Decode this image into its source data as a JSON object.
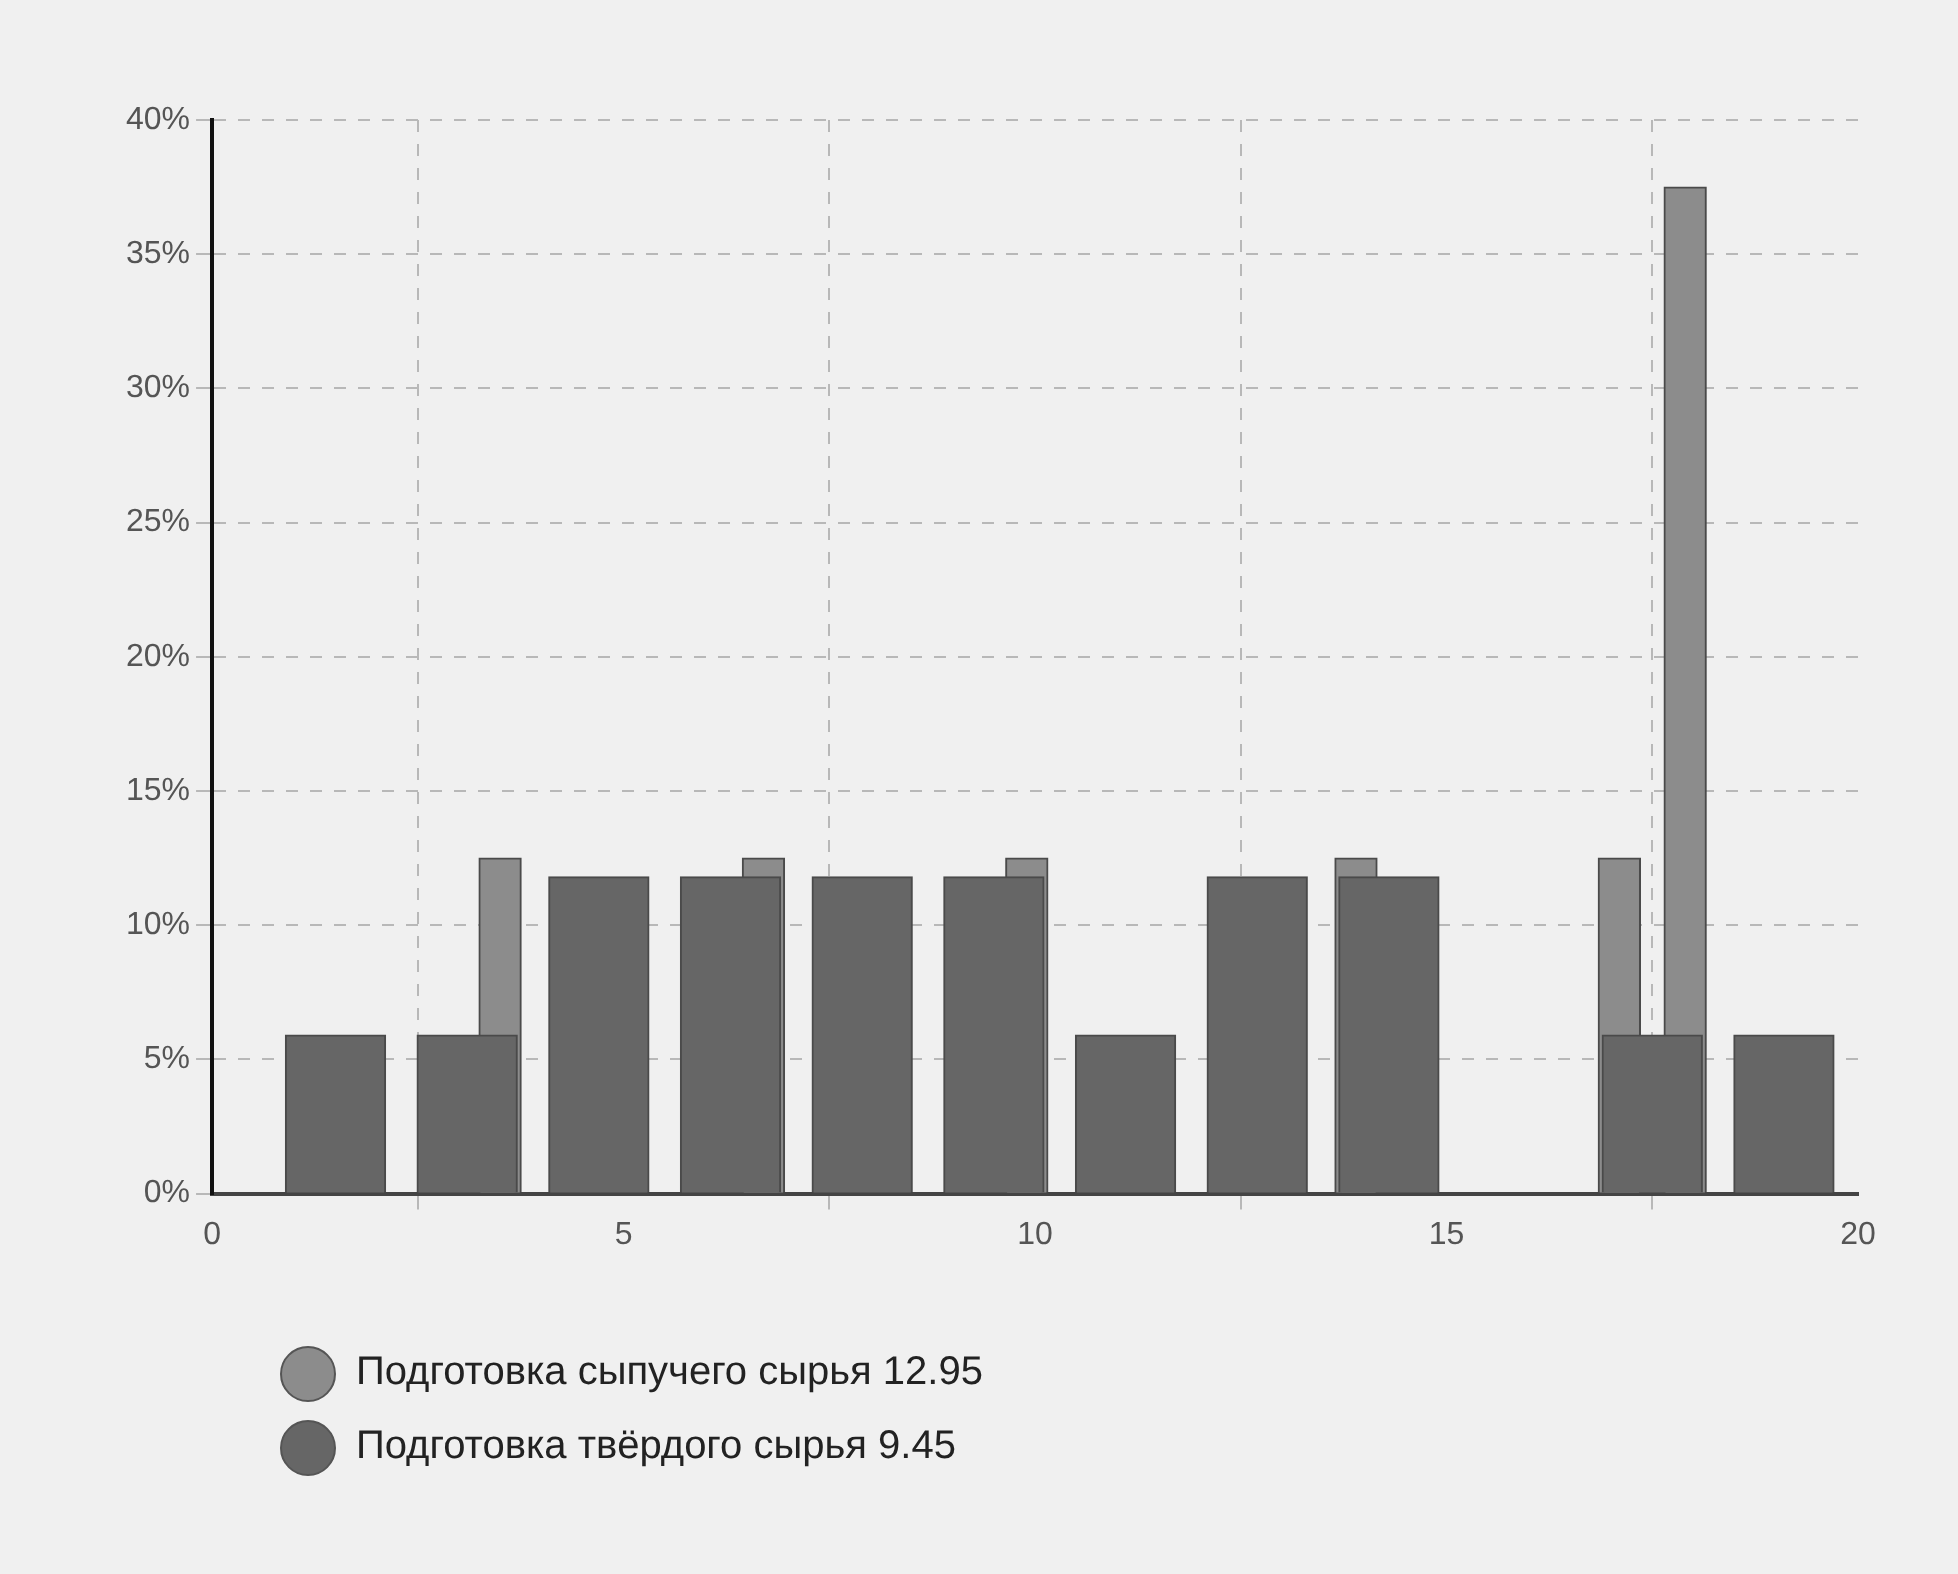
{
  "chart_data": {
    "type": "bar",
    "xlim": [
      0,
      20
    ],
    "xticks": [
      0,
      5,
      10,
      15,
      20
    ],
    "ylim": [
      0,
      40
    ],
    "yticks": [
      {
        "value": 0,
        "label": "0%"
      },
      {
        "value": 5,
        "label": "5%"
      },
      {
        "value": 10,
        "label": "10%"
      },
      {
        "value": 15,
        "label": "15%"
      },
      {
        "value": 20,
        "label": "20%"
      },
      {
        "value": 25,
        "label": "25%"
      },
      {
        "value": 30,
        "label": "30%"
      },
      {
        "value": 35,
        "label": "35%"
      },
      {
        "value": 40,
        "label": "40%"
      }
    ],
    "grid": true,
    "legend": "bottom left",
    "series": [
      {
        "name": "Подготовка сыпучего сырья 12.95",
        "color": "#8c8c8c",
        "x": [
          3.5,
          6.7,
          9.9,
          13.9,
          17.1,
          17.9
        ],
        "values": [
          12.5,
          12.5,
          12.5,
          12.5,
          12.5,
          37.5
        ]
      },
      {
        "name": "Подготовка твёрдого сырья 9.45",
        "color": "#666666",
        "x": [
          1.5,
          3.1,
          4.7,
          6.3,
          7.9,
          9.5,
          11.1,
          12.7,
          14.3,
          15.9,
          17.5,
          19.1
        ],
        "values": [
          5.9,
          5.9,
          11.8,
          11.8,
          11.8,
          11.8,
          5.9,
          11.8,
          11.8,
          0,
          5.9,
          5.9
        ]
      }
    ]
  }
}
